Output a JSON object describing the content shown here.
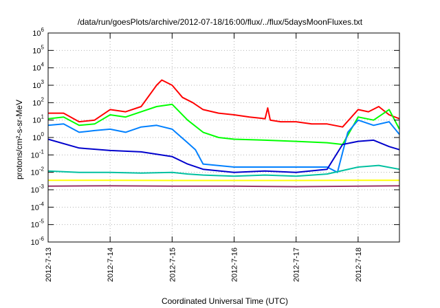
{
  "chart_data": {
    "type": "line",
    "title": "/data/run/goesPlots/archive/2012-07-18/16:00/flux/../flux/5daysMoonFluxes.txt",
    "xlabel": "Coordinated Universal Time (UTC)",
    "ylabel": "protons/cm²-s-sr-MeV",
    "xlim": [
      "2012-07-13 00:00",
      "2012-07-18 16:00"
    ],
    "ylim": [
      1e-06,
      1000000.0
    ],
    "yscale": "log",
    "grid": true,
    "legend": "none",
    "x_ticks": [
      "2012-7-13",
      "2012-7-14",
      "2012-7-15",
      "2012-7-16",
      "2012-7-17",
      "2012-7-18"
    ],
    "y_ticks": [
      {
        "base": "10",
        "exp": "-6"
      },
      {
        "base": "10",
        "exp": "-5"
      },
      {
        "base": "10",
        "exp": "-4"
      },
      {
        "base": "10",
        "exp": "-3"
      },
      {
        "base": "10",
        "exp": "-2"
      },
      {
        "base": "10",
        "exp": "-1"
      },
      {
        "base": "10",
        "exp": "0"
      },
      {
        "base": "10",
        "exp": "1"
      },
      {
        "base": "10",
        "exp": "2"
      },
      {
        "base": "10",
        "exp": "3"
      },
      {
        "base": "10",
        "exp": "4"
      },
      {
        "base": "10",
        "exp": "5"
      },
      {
        "base": "10",
        "exp": "6"
      }
    ],
    "series": [
      {
        "color": "#ff0000",
        "x": [
          "2012-07-13 00:00",
          "2012-07-13 06:00",
          "2012-07-13 12:00",
          "2012-07-13 18:00",
          "2012-07-14 00:00",
          "2012-07-14 06:00",
          "2012-07-14 12:00",
          "2012-07-14 18:00",
          "2012-07-14 20:00",
          "2012-07-15 00:00",
          "2012-07-15 04:00",
          "2012-07-15 08:00",
          "2012-07-15 12:00",
          "2012-07-15 18:00",
          "2012-07-16 00:00",
          "2012-07-16 06:00",
          "2012-07-16 12:00",
          "2012-07-16 13:00",
          "2012-07-16 14:00",
          "2012-07-16 18:00",
          "2012-07-17 00:00",
          "2012-07-17 06:00",
          "2012-07-17 12:00",
          "2012-07-17 18:00",
          "2012-07-18 00:00",
          "2012-07-18 04:00",
          "2012-07-18 08:00",
          "2012-07-18 12:00",
          "2012-07-18 16:00"
        ],
        "y": [
          25,
          25,
          8,
          10,
          40,
          30,
          60,
          1000,
          2000,
          1000,
          200,
          100,
          40,
          25,
          20,
          15,
          12,
          50,
          10,
          8,
          8,
          6,
          6,
          4,
          40,
          30,
          60,
          20,
          12
        ]
      },
      {
        "color": "#00ff00",
        "x": [
          "2012-07-13 00:00",
          "2012-07-13 06:00",
          "2012-07-13 12:00",
          "2012-07-13 18:00",
          "2012-07-14 00:00",
          "2012-07-14 06:00",
          "2012-07-14 12:00",
          "2012-07-14 18:00",
          "2012-07-15 00:00",
          "2012-07-15 06:00",
          "2012-07-15 12:00",
          "2012-07-15 18:00",
          "2012-07-16 00:00",
          "2012-07-16 12:00",
          "2012-07-17 00:00",
          "2012-07-17 12:00",
          "2012-07-17 18:00",
          "2012-07-18 00:00",
          "2012-07-18 06:00",
          "2012-07-18 12:00",
          "2012-07-18 16:00"
        ],
        "y": [
          12,
          15,
          5,
          6,
          20,
          15,
          30,
          60,
          80,
          10,
          2,
          1,
          0.8,
          0.7,
          0.6,
          0.5,
          0.4,
          15,
          10,
          40,
          3
        ]
      },
      {
        "color": "#0080ff",
        "x": [
          "2012-07-13 00:00",
          "2012-07-13 06:00",
          "2012-07-13 12:00",
          "2012-07-13 18:00",
          "2012-07-14 00:00",
          "2012-07-14 06:00",
          "2012-07-14 12:00",
          "2012-07-14 18:00",
          "2012-07-15 00:00",
          "2012-07-15 06:00",
          "2012-07-15 09:00",
          "2012-07-15 12:00",
          "2012-07-16 00:00",
          "2012-07-16 12:00",
          "2012-07-17 00:00",
          "2012-07-17 12:00",
          "2012-07-17 16:00",
          "2012-07-17 20:00",
          "2012-07-18 00:00",
          "2012-07-18 06:00",
          "2012-07-18 12:00",
          "2012-07-18 16:00"
        ],
        "y": [
          5,
          6,
          2,
          2.5,
          3,
          2,
          4,
          5,
          3,
          0.5,
          0.2,
          0.03,
          0.02,
          0.02,
          0.02,
          0.02,
          0.01,
          2,
          10,
          5,
          8,
          1.5
        ]
      },
      {
        "color": "#0000cc",
        "x": [
          "2012-07-13 00:00",
          "2012-07-13 12:00",
          "2012-07-14 00:00",
          "2012-07-14 12:00",
          "2012-07-15 00:00",
          "2012-07-15 06:00",
          "2012-07-15 12:00",
          "2012-07-16 00:00",
          "2012-07-16 12:00",
          "2012-07-17 00:00",
          "2012-07-17 12:00",
          "2012-07-17 18:00",
          "2012-07-18 00:00",
          "2012-07-18 06:00",
          "2012-07-18 12:00",
          "2012-07-18 16:00"
        ],
        "y": [
          0.8,
          0.25,
          0.18,
          0.15,
          0.08,
          0.03,
          0.015,
          0.01,
          0.012,
          0.01,
          0.015,
          0.4,
          0.6,
          0.7,
          0.3,
          0.2
        ]
      },
      {
        "color": "#00c0a0",
        "x": [
          "2012-07-13 00:00",
          "2012-07-13 12:00",
          "2012-07-14 00:00",
          "2012-07-14 12:00",
          "2012-07-15 00:00",
          "2012-07-15 06:00",
          "2012-07-15 12:00",
          "2012-07-16 00:00",
          "2012-07-16 12:00",
          "2012-07-17 00:00",
          "2012-07-17 12:00",
          "2012-07-18 00:00",
          "2012-07-18 08:00",
          "2012-07-18 16:00"
        ],
        "y": [
          0.012,
          0.01,
          0.01,
          0.009,
          0.01,
          0.008,
          0.007,
          0.006,
          0.007,
          0.006,
          0.008,
          0.02,
          0.025,
          0.015
        ]
      },
      {
        "color": "#ffff00",
        "x": [
          "2012-07-13 00:00",
          "2012-07-14 00:00",
          "2012-07-15 00:00",
          "2012-07-16 00:00",
          "2012-07-17 00:00",
          "2012-07-18 00:00",
          "2012-07-18 16:00"
        ],
        "y": [
          0.0035,
          0.0035,
          0.0034,
          0.0034,
          0.0034,
          0.0035,
          0.0035
        ]
      },
      {
        "color": "#993366",
        "x": [
          "2012-07-13 00:00",
          "2012-07-14 00:00",
          "2012-07-15 00:00",
          "2012-07-16 00:00",
          "2012-07-17 00:00",
          "2012-07-18 00:00",
          "2012-07-18 16:00"
        ],
        "y": [
          0.0016,
          0.0017,
          0.0016,
          0.0016,
          0.0015,
          0.0016,
          0.0017
        ]
      }
    ]
  }
}
